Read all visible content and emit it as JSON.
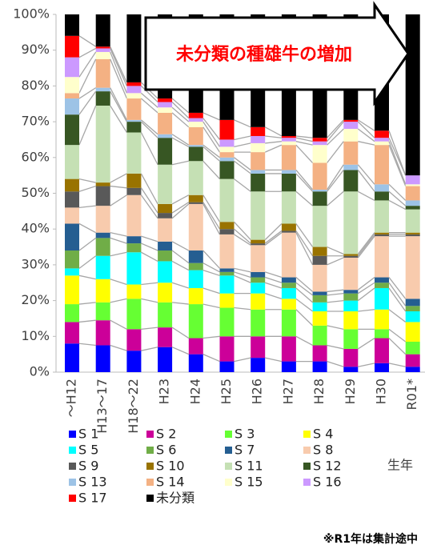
{
  "chart_data": {
    "type": "stacked_bar_100",
    "annotation": "未分類の種雄牛の増加",
    "note": "※R1年は集計途中",
    "x_label": "生年",
    "categories": [
      "～H12",
      "H13～17",
      "H18～22",
      "H23",
      "H24",
      "H25",
      "H26",
      "H27",
      "H28",
      "H29",
      "H30",
      "R01*"
    ],
    "ylim": [
      0,
      100
    ],
    "yticks": [
      {
        "value": 0,
        "label": "0%"
      },
      {
        "value": 10,
        "label": "10%"
      },
      {
        "value": 20,
        "label": "20%"
      },
      {
        "value": 30,
        "label": "30%"
      },
      {
        "value": 40,
        "label": "40%"
      },
      {
        "value": 50,
        "label": "50%"
      },
      {
        "value": 60,
        "label": "60%"
      },
      {
        "value": 70,
        "label": "70%"
      },
      {
        "value": 80,
        "label": "80%"
      },
      {
        "value": 90,
        "label": "90%"
      },
      {
        "value": 100,
        "label": "100%"
      }
    ],
    "series": [
      {
        "name": "S 1",
        "color": "#0000ff",
        "values": [
          8,
          7.5,
          6,
          7,
          5,
          3,
          4,
          3,
          3,
          1.5,
          2.5,
          1.5
        ]
      },
      {
        "name": "S 2",
        "color": "#cc0099",
        "values": [
          6,
          7,
          6,
          5.5,
          4.5,
          7,
          6,
          7,
          4.5,
          5,
          7,
          3.5
        ]
      },
      {
        "name": "S 3",
        "color": "#66ff33",
        "values": [
          5,
          5,
          8.5,
          7,
          9.5,
          8,
          7.5,
          7.5,
          5.5,
          5.5,
          2.5,
          3.5
        ]
      },
      {
        "name": "S 4",
        "color": "#ffff00",
        "values": [
          8,
          6.5,
          4,
          5.5,
          4.5,
          4,
          4.5,
          3,
          4,
          5,
          5.5,
          5.5
        ]
      },
      {
        "name": "S 5",
        "color": "#00ffff",
        "values": [
          2,
          6.5,
          9,
          6,
          5,
          5,
          3,
          3,
          2.5,
          3,
          6,
          3
        ]
      },
      {
        "name": "S 6",
        "color": "#70ad47",
        "values": [
          5,
          5,
          2.5,
          3,
          2,
          1,
          1.5,
          1.5,
          2,
          2,
          1.5,
          1.5
        ]
      },
      {
        "name": "S 7",
        "color": "#255e91",
        "values": [
          7.5,
          1.5,
          2,
          2.5,
          3.5,
          1,
          1.5,
          1.5,
          1,
          1,
          1.5,
          2
        ]
      },
      {
        "name": "S 8",
        "color": "#f8cbad",
        "values": [
          4.5,
          7.5,
          11.5,
          6.5,
          13,
          9.5,
          7.5,
          12.5,
          7.5,
          9,
          11.5,
          17.5
        ]
      },
      {
        "name": "S 9",
        "color": "#595959",
        "values": [
          4.5,
          5.5,
          2,
          1.5,
          0.5,
          1.5,
          0.5,
          0.5,
          2.5,
          0.5,
          0.5,
          0.5
        ]
      },
      {
        "name": "S 10",
        "color": "#997300",
        "values": [
          3.5,
          1,
          4,
          2.5,
          2,
          2,
          1,
          2,
          2.5,
          0.5,
          0.5,
          0.5
        ]
      },
      {
        "name": "S 11",
        "color": "#c5e0b4",
        "values": [
          9.5,
          21.5,
          11.5,
          11,
          9.5,
          12,
          13.5,
          9,
          11.5,
          17.5,
          9,
          6.5
        ]
      },
      {
        "name": "S 12",
        "color": "#375623",
        "values": [
          8.5,
          4,
          3,
          7.5,
          4,
          5,
          5,
          5,
          4,
          6,
          2.5,
          1
        ]
      },
      {
        "name": "S 13",
        "color": "#9dc3e6",
        "values": [
          4.5,
          1,
          0.5,
          1,
          0.5,
          1,
          1,
          1,
          0.5,
          1.5,
          2,
          1.5
        ]
      },
      {
        "name": "S 14",
        "color": "#f4b183",
        "values": [
          1.5,
          8,
          6,
          6,
          5,
          1.5,
          5,
          7,
          7.5,
          6.5,
          11,
          4
        ]
      },
      {
        "name": "S 15",
        "color": "#ffffcc",
        "values": [
          4.5,
          2,
          1.5,
          1.5,
          1.5,
          1.5,
          2.5,
          1,
          5,
          3.5,
          1,
          0.5
        ]
      },
      {
        "name": "S 16",
        "color": "#cc99ff",
        "values": [
          5.5,
          1,
          2,
          1.5,
          1,
          2,
          2,
          1,
          1,
          2,
          1,
          2.5
        ]
      },
      {
        "name": "S 17",
        "color": "#ff0000",
        "values": [
          6,
          0.5,
          1,
          1,
          1.5,
          5.5,
          2.5,
          0.5,
          1,
          0.5,
          2,
          0
        ]
      },
      {
        "name": "未分類",
        "color": "#000000",
        "values": [
          6,
          9,
          19,
          23.5,
          27.5,
          29.5,
          31.5,
          34,
          34.5,
          29.5,
          32.5,
          45
        ]
      }
    ]
  }
}
